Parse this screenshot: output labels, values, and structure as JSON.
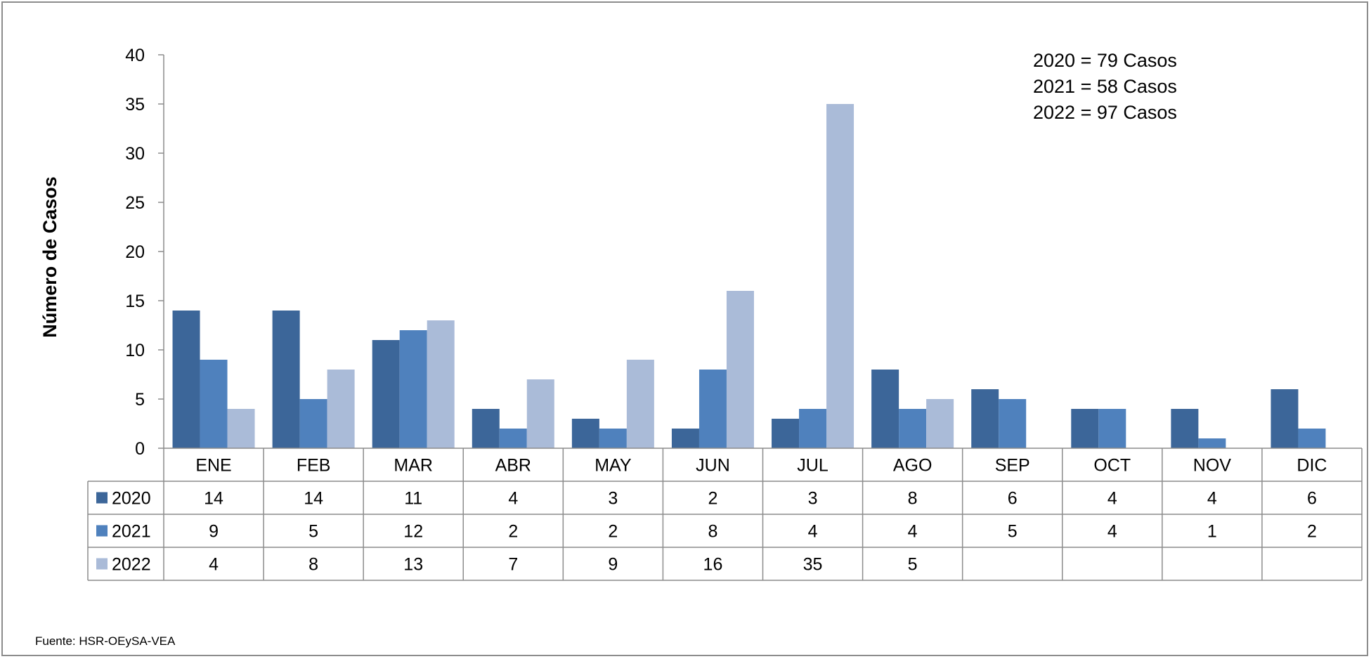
{
  "chart_data": {
    "type": "bar",
    "title": "",
    "xlabel": "",
    "ylabel": "Número de Casos",
    "ylim": [
      0,
      40
    ],
    "yticks": [
      0,
      5,
      10,
      15,
      20,
      25,
      30,
      35,
      40
    ],
    "grid": false,
    "legend": "data-table-left",
    "categories": [
      "ENE",
      "FEB",
      "MAR",
      "ABR",
      "MAY",
      "JUN",
      "JUL",
      "AGO",
      "SEP",
      "OCT",
      "NOV",
      "DIC"
    ],
    "series": [
      {
        "name": "2020",
        "color": "#3c6699",
        "values": [
          14,
          14,
          11,
          4,
          3,
          2,
          3,
          8,
          6,
          4,
          4,
          6
        ]
      },
      {
        "name": "2021",
        "color": "#4f81bd",
        "values": [
          9,
          5,
          12,
          2,
          2,
          8,
          4,
          4,
          5,
          4,
          1,
          2
        ]
      },
      {
        "name": "2022",
        "color": "#aabbd8",
        "values": [
          4,
          8,
          13,
          7,
          9,
          16,
          35,
          5,
          null,
          null,
          null,
          null
        ]
      }
    ],
    "annotations": [
      "2020 =  79 Casos",
      "2021 =  58 Casos",
      "2022 =  97 Casos"
    ],
    "source": "Fuente: HSR-OEySA-VEA"
  }
}
